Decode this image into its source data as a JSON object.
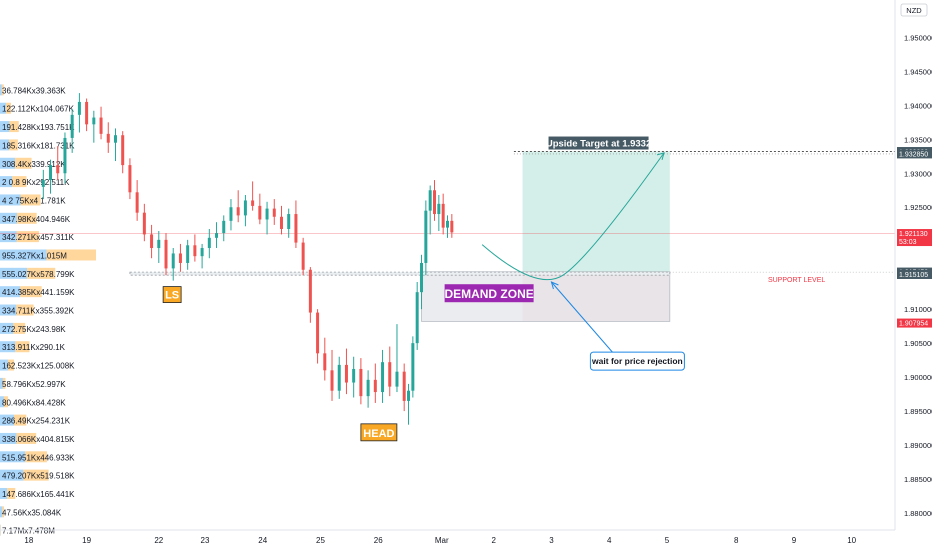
{
  "chart_data": {
    "type": "candlestick",
    "currency": "NZD",
    "ylim": [
      1.8775,
      1.9555
    ],
    "xlim": [
      0,
      31
    ],
    "grid": false,
    "y_ticks": [
      {
        "v": 1.95,
        "label": "1.950000"
      },
      {
        "v": 1.945,
        "label": "1.945000"
      },
      {
        "v": 1.94,
        "label": "1.940000"
      },
      {
        "v": 1.935,
        "label": "1.935000"
      },
      {
        "v": 1.93,
        "label": "1.930000"
      },
      {
        "v": 1.925,
        "label": "1.925000"
      },
      {
        "v": 1.92,
        "label": "1.920000"
      },
      {
        "v": 1.915,
        "label": "1.915000"
      },
      {
        "v": 1.91,
        "label": "1.910000"
      },
      {
        "v": 1.905,
        "label": "1.905000"
      },
      {
        "v": 1.9,
        "label": "1.900000"
      },
      {
        "v": 1.895,
        "label": "1.895000"
      },
      {
        "v": 1.89,
        "label": "1.890000"
      },
      {
        "v": 1.885,
        "label": "1.885000"
      },
      {
        "v": 1.88,
        "label": "1.880000"
      }
    ],
    "x_ticks": [
      {
        "v": 1,
        "label": "18"
      },
      {
        "v": 3,
        "label": "19"
      },
      {
        "v": 5.5,
        "label": "22"
      },
      {
        "v": 7.1,
        "label": "23"
      },
      {
        "v": 9.1,
        "label": "24"
      },
      {
        "v": 11.1,
        "label": "25"
      },
      {
        "v": 13.1,
        "label": "26"
      },
      {
        "v": 15.3,
        "label": "Mar"
      },
      {
        "v": 17.1,
        "label": "2"
      },
      {
        "v": 19.1,
        "label": "3"
      },
      {
        "v": 21.1,
        "label": "4"
      },
      {
        "v": 23.1,
        "label": "5"
      },
      {
        "v": 25.5,
        "label": "8"
      },
      {
        "v": 27.5,
        "label": "9"
      },
      {
        "v": 29.5,
        "label": "10"
      }
    ],
    "price_tags": [
      {
        "value": 1.9332,
        "label": "1.933200",
        "color": "#455a64"
      },
      {
        "value": 1.93285,
        "label": "1.932850",
        "color": "#455a64"
      },
      {
        "value": 1.92113,
        "label": "1.921130",
        "sublabel": "53:03",
        "color": "#f23645"
      },
      {
        "value": 1.915458,
        "label": "1.915458",
        "color": "#455a64"
      },
      {
        "value": 1.915105,
        "label": "1.915105",
        "color": "#455a64"
      },
      {
        "value": 1.907954,
        "label": "1.907954",
        "color": "#f23645"
      }
    ],
    "volume_profile": [
      {
        "price": 1.9422,
        "label": "36.784Kx39.363K",
        "up": 36.784,
        "down": 39.363
      },
      {
        "price": 1.9395,
        "label": "122.112Kx104.067K",
        "up": 122.112,
        "down": 104.067
      },
      {
        "price": 1.9368,
        "label": "191.428Kx193.751K",
        "up": 191.428,
        "down": 193.751
      },
      {
        "price": 1.9341,
        "label": "185.316Kx181.731K",
        "up": 185.316,
        "down": 181.731
      },
      {
        "price": 1.9314,
        "label": "308.4Kx339.912K",
        "up": 308.4,
        "down": 339.912
      },
      {
        "price": 1.9287,
        "label": "2 0.8 9Kx292.511K",
        "up": 250.89,
        "down": 292.511
      },
      {
        "price": 1.926,
        "label": "4 2 75Kx4 1.781K",
        "up": 420.75,
        "down": 410.781
      },
      {
        "price": 1.9233,
        "label": "347.98Kx404.946K",
        "up": 347.98,
        "down": 404.946
      },
      {
        "price": 1.9206,
        "label": "342.271Kx457.311K",
        "up": 342.271,
        "down": 457.311
      },
      {
        "price": 1.9179,
        "label": "955.327Kx1.015M",
        "up": 955.327,
        "down": 1015.0
      },
      {
        "price": 1.9152,
        "label": "555.027Kx578.799K",
        "up": 555.027,
        "down": 578.799
      },
      {
        "price": 1.9125,
        "label": "414.385Kx441.159K",
        "up": 414.385,
        "down": 441.159
      },
      {
        "price": 1.9098,
        "label": "334.711Kx355.392K",
        "up": 334.711,
        "down": 355.392
      },
      {
        "price": 1.9071,
        "label": "272.75Kx243.98K",
        "up": 272.75,
        "down": 243.98
      },
      {
        "price": 1.9044,
        "label": "313.911Kx290.1K",
        "up": 313.911,
        "down": 290.1
      },
      {
        "price": 1.9017,
        "label": "162.523Kx125.008K",
        "up": 162.523,
        "down": 125.008
      },
      {
        "price": 1.899,
        "label": "58.796Kx52.997K",
        "up": 58.796,
        "down": 52.997
      },
      {
        "price": 1.8963,
        "label": "80.496Kx84.428K",
        "up": 80.496,
        "down": 84.428
      },
      {
        "price": 1.8936,
        "label": "286.49Kx254.231K",
        "up": 286.49,
        "down": 254.231
      },
      {
        "price": 1.8909,
        "label": "338.066Kx404.815K",
        "up": 338.066,
        "down": 404.815
      },
      {
        "price": 1.8882,
        "label": "515.951Kx446.933K",
        "up": 515.951,
        "down": 446.933
      },
      {
        "price": 1.8855,
        "label": "479.207Kx519.518K",
        "up": 479.207,
        "down": 519.518
      },
      {
        "price": 1.8828,
        "label": "147.686Kx165.441K",
        "up": 147.686,
        "down": 165.441
      },
      {
        "price": 1.8801,
        "label": "47.56Kx35.084K",
        "up": 47.56,
        "down": 35.084
      },
      {
        "price": 1.8774,
        "label": "7.17Mx7.478M",
        "up": 7.17,
        "down": 7.478
      }
    ],
    "candles": [
      [
        1.5,
        1.928,
        1.9305,
        1.9262,
        1.929
      ],
      [
        1.75,
        1.929,
        1.932,
        1.927,
        1.9312
      ],
      [
        2.0,
        1.9312,
        1.934,
        1.929,
        1.93
      ],
      [
        2.25,
        1.93,
        1.936,
        1.9285,
        1.9352
      ],
      [
        2.5,
        1.9352,
        1.9395,
        1.933,
        1.9386
      ],
      [
        2.75,
        1.9386,
        1.9418,
        1.936,
        1.9405
      ],
      [
        3.0,
        1.9405,
        1.941,
        1.9362,
        1.9372
      ],
      [
        3.25,
        1.9372,
        1.9392,
        1.9345,
        1.9382
      ],
      [
        3.5,
        1.9382,
        1.9398,
        1.935,
        1.9358
      ],
      [
        3.75,
        1.9358,
        1.9375,
        1.933,
        1.9345
      ],
      [
        4.0,
        1.9345,
        1.9366,
        1.9318,
        1.9356
      ],
      [
        4.25,
        1.9356,
        1.9362,
        1.93,
        1.9312
      ],
      [
        4.5,
        1.9312,
        1.9322,
        1.9262,
        1.9272
      ],
      [
        4.75,
        1.9272,
        1.929,
        1.923,
        1.9242
      ],
      [
        5.0,
        1.9242,
        1.9255,
        1.92,
        1.921
      ],
      [
        5.25,
        1.921,
        1.9224,
        1.9175,
        1.919
      ],
      [
        5.5,
        1.919,
        1.9215,
        1.9168,
        1.9202
      ],
      [
        5.75,
        1.9202,
        1.9212,
        1.915,
        1.916
      ],
      [
        6.0,
        1.916,
        1.919,
        1.9142,
        1.9182
      ],
      [
        6.25,
        1.9182,
        1.9196,
        1.9155,
        1.9168
      ],
      [
        6.5,
        1.9168,
        1.9202,
        1.9158,
        1.9194
      ],
      [
        6.75,
        1.9194,
        1.921,
        1.917,
        1.9178
      ],
      [
        7.0,
        1.9178,
        1.9196,
        1.916,
        1.919
      ],
      [
        7.25,
        1.919,
        1.9218,
        1.9175,
        1.9205
      ],
      [
        7.5,
        1.9205,
        1.9228,
        1.919,
        1.9212
      ],
      [
        7.75,
        1.9212,
        1.9238,
        1.92,
        1.923
      ],
      [
        8.0,
        1.923,
        1.9262,
        1.9216,
        1.925
      ],
      [
        8.25,
        1.925,
        1.9275,
        1.9228,
        1.9238
      ],
      [
        8.5,
        1.9238,
        1.9268,
        1.9222,
        1.926
      ],
      [
        8.75,
        1.926,
        1.9288,
        1.9245,
        1.9252
      ],
      [
        9.0,
        1.9252,
        1.927,
        1.9225,
        1.9232
      ],
      [
        9.25,
        1.9232,
        1.9258,
        1.921,
        1.9248
      ],
      [
        9.5,
        1.9248,
        1.9262,
        1.9224,
        1.9236
      ],
      [
        9.75,
        1.9236,
        1.9252,
        1.921,
        1.9218
      ],
      [
        10.0,
        1.9218,
        1.9248,
        1.9205,
        1.924
      ],
      [
        10.25,
        1.924,
        1.926,
        1.919,
        1.9198
      ],
      [
        10.5,
        1.9198,
        1.9205,
        1.915,
        1.9158
      ],
      [
        10.75,
        1.9158,
        1.9162,
        1.908,
        1.9095
      ],
      [
        11.0,
        1.9095,
        1.91,
        1.902,
        1.9035
      ],
      [
        11.25,
        1.9035,
        1.9058,
        1.8995,
        1.901
      ],
      [
        11.5,
        1.901,
        1.904,
        1.8965,
        1.898
      ],
      [
        11.75,
        1.898,
        1.903,
        1.8968,
        1.9018
      ],
      [
        12.0,
        1.9018,
        1.9042,
        1.8975,
        1.8992
      ],
      [
        12.25,
        1.8992,
        1.903,
        1.897,
        1.9012
      ],
      [
        12.5,
        1.9012,
        1.9028,
        1.896,
        1.8972
      ],
      [
        12.75,
        1.8972,
        1.901,
        1.8955,
        1.8996
      ],
      [
        13.0,
        1.8996,
        1.902,
        1.8962,
        1.8978
      ],
      [
        13.25,
        1.8978,
        1.904,
        1.8962,
        1.9022
      ],
      [
        13.5,
        1.9022,
        1.9045,
        1.8972,
        1.8986
      ],
      [
        13.75,
        1.8986,
        1.9078,
        1.8978,
        1.9008
      ],
      [
        14.0,
        1.9008,
        1.902,
        1.895,
        1.8965
      ],
      [
        14.15,
        1.8965,
        1.899,
        1.893,
        1.898
      ],
      [
        14.3,
        1.898,
        1.906,
        1.897,
        1.905
      ],
      [
        14.45,
        1.905,
        1.914,
        1.904,
        1.9125
      ],
      [
        14.6,
        1.9125,
        1.918,
        1.91,
        1.9168
      ],
      [
        14.75,
        1.9168,
        1.926,
        1.915,
        1.9245
      ],
      [
        14.9,
        1.9245,
        1.9282,
        1.921,
        1.9275
      ],
      [
        15.05,
        1.9275,
        1.929,
        1.923,
        1.924
      ],
      [
        15.2,
        1.924,
        1.9268,
        1.9215,
        1.9255
      ],
      [
        15.35,
        1.9255,
        1.927,
        1.921,
        1.922
      ],
      [
        15.5,
        1.922,
        1.9238,
        1.9205,
        1.923
      ],
      [
        15.65,
        1.923,
        1.924,
        1.9205,
        1.9213
      ]
    ],
    "annotations": {
      "upside_target": "Upside Target at 1.9332",
      "support_level": "SUPPORT LEVEL",
      "demand_zone": "DEMAND ZONE",
      "left_shoulder": "LS",
      "head": "HEAD",
      "note": "wait for price rejection"
    }
  },
  "colors": {
    "up": "#26a69a",
    "down": "#ef5350",
    "badge_gray": "#455a64",
    "badge_red": "#f23645",
    "target_zone": "#d4efe9",
    "stop_zone": "#f4dde0",
    "demand_zone": "#e4e6ea",
    "demand_label": "#9c27b0",
    "shoulder_label": "#f9a825",
    "vp_up": "#64b5f6",
    "vp_down": "#ffb74d"
  }
}
